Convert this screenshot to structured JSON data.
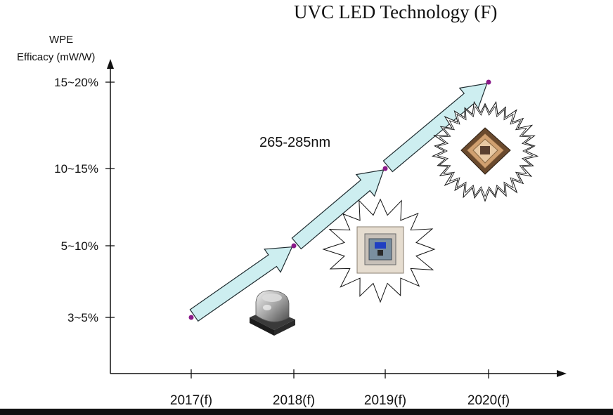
{
  "chart_data": {
    "type": "line",
    "title": "UVC LED Technology (F)",
    "ylabel_line1": "WPE",
    "ylabel_line2": "Efficacy (mW/W)",
    "categories": [
      "2017(f)",
      "2018(f)",
      "2019(f)",
      "2020(f)"
    ],
    "y_levels": [
      "3~5%",
      "5~10%",
      "10~15%",
      "15~20%"
    ],
    "points": [
      {
        "x": "2017(f)",
        "y": "3~5%"
      },
      {
        "x": "2018(f)",
        "y": "5~10%"
      },
      {
        "x": "2019(f)",
        "y": "10~15%"
      },
      {
        "x": "2020(f)",
        "y": "15~20%"
      }
    ],
    "annotation": "265-285nm",
    "legend": "none",
    "grid": false
  },
  "colors": {
    "arrow_fill": "#cdeef0",
    "arrow_stroke": "#1e2b2f",
    "point": "#8a1a8a",
    "axis": "#111111"
  },
  "icons": [
    "led-dome-package-icon",
    "led-flat-chip-icon",
    "led-ceramic-chip-icon",
    "starburst-icon"
  ]
}
